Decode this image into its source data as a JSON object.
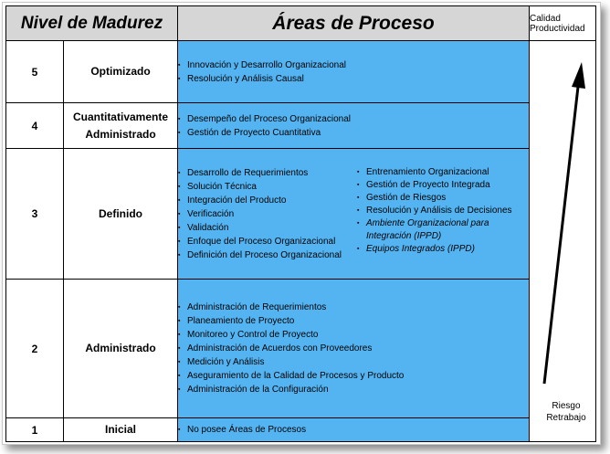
{
  "headers": {
    "nivel": "Nivel de Madurez",
    "areas": "Áreas de Proceso",
    "top_right": [
      "Calidad",
      "Productividad"
    ]
  },
  "bottom_right": [
    "Riesgo",
    "Retrabajo"
  ],
  "levels": [
    {
      "num": "5",
      "name": "Optimizado",
      "areas": [
        "Innovación y Desarrollo Organizacional",
        "Resolución y Análisis Causal"
      ]
    },
    {
      "num": "4",
      "name": "Cuantitativamente Administrado",
      "areas": [
        "Desempeño del Proceso Organizacional",
        "Gestión de Proyecto Cuantitativa"
      ]
    },
    {
      "num": "3",
      "name": "Definido",
      "areas_left": [
        "Desarrollo de Requerimientos",
        "Solución Técnica",
        "Integración del Producto",
        "Verificación",
        "Validación",
        "Enfoque del Proceso Organizacional",
        "Definición del Proceso Organizacional"
      ],
      "areas_right": [
        "Entrenamiento Organizacional",
        "Gestión de Proyecto Integrada",
        "Gestión de Riesgos",
        "Resolución y Análisis de Decisiones",
        "Ambiente Organizacional para Integración (IPPD)",
        "Equipos Integrados (IPPD)"
      ]
    },
    {
      "num": "2",
      "name": "Administrado",
      "areas": [
        "Administración de Requerimientos",
        "Planeamiento de Proyecto",
        "Monitoreo y Control de Proyecto",
        "Administración de Acuerdos con Proveedores",
        "Medición y Análisis",
        "Aseguramiento de la Calidad de Procesos y Producto",
        "Administración de la Configuración"
      ]
    },
    {
      "num": "1",
      "name": "Inicial",
      "areas": [
        "No posee Áreas de Procesos"
      ]
    }
  ],
  "colors": {
    "areas_bg": "#54b4f2",
    "header_bg": "#d6d6d6"
  }
}
